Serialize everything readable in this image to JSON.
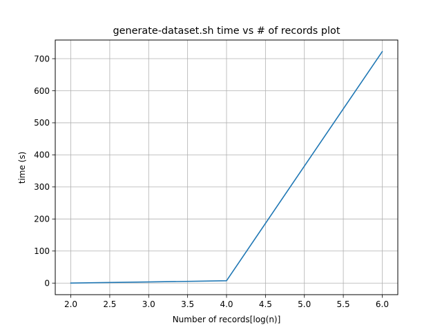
{
  "chart_data": {
    "type": "line",
    "title": "generate-dataset.sh time vs # of records plot",
    "xlabel": "Number of records[log(n)]",
    "ylabel": "time (s)",
    "xlim": [
      1.8,
      6.2
    ],
    "ylim": [
      -36.1,
      758.2
    ],
    "x_ticks": [
      2.0,
      2.5,
      3.0,
      3.5,
      4.0,
      4.5,
      5.0,
      5.5,
      6.0
    ],
    "x_tick_labels": [
      "2.0",
      "2.5",
      "3.0",
      "3.5",
      "4.0",
      "4.5",
      "5.0",
      "5.5",
      "6.0"
    ],
    "y_ticks": [
      0,
      100,
      200,
      300,
      400,
      500,
      600,
      700
    ],
    "y_tick_labels": [
      "0",
      "100",
      "200",
      "300",
      "400",
      "500",
      "600",
      "700"
    ],
    "grid": true,
    "series": [
      {
        "color": "#1f77b4",
        "x": [
          2,
          3,
          4,
          5,
          6
        ],
        "y": [
          0.1,
          3.5,
          7.3,
          365,
          722
        ]
      }
    ]
  }
}
